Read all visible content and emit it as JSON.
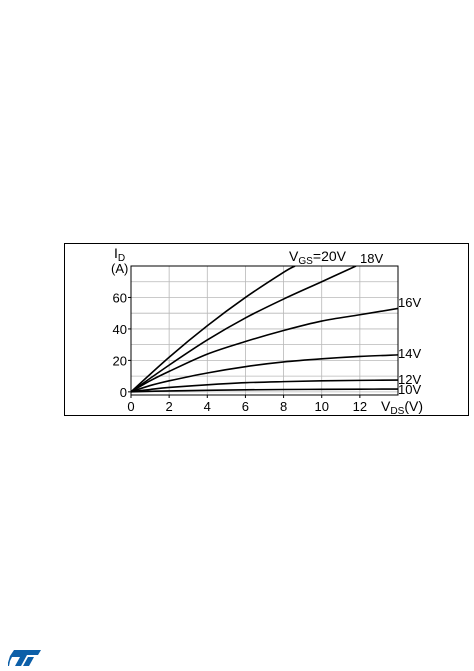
{
  "chart_data": {
    "type": "line",
    "title": "",
    "xlabel": "V",
    "xlabel_sub": "DS",
    "xlabel_unit": "(V)",
    "ylabel": "I",
    "ylabel_sub": "D",
    "ylabel_unit": "(A)",
    "xlim": [
      0,
      14
    ],
    "ylim": [
      -2,
      80
    ],
    "x_ticks": [
      0,
      2,
      4,
      6,
      8,
      10,
      12
    ],
    "y_ticks": [
      0,
      20,
      40,
      60
    ],
    "grid": true,
    "legend": "none",
    "series": [
      {
        "name": "VGS=20V",
        "label_prefix": "V",
        "label_sub": "GS",
        "label_suffix": "=20V",
        "x": [
          0,
          2,
          4,
          6,
          8,
          8.6
        ],
        "y": [
          0,
          22,
          42,
          60,
          76,
          80
        ]
      },
      {
        "name": "18V",
        "label": "18V",
        "x": [
          0,
          2,
          4,
          6,
          8,
          10,
          11.8
        ],
        "y": [
          0,
          17,
          33,
          47,
          59,
          70,
          80
        ]
      },
      {
        "name": "16V",
        "label": "16V",
        "x": [
          0,
          1,
          2,
          4,
          6,
          8,
          10,
          12,
          14
        ],
        "y": [
          0,
          7,
          13,
          24,
          32,
          39,
          45,
          49,
          53
        ]
      },
      {
        "name": "14V",
        "label": "14V",
        "x": [
          0,
          1,
          2,
          4,
          6,
          8,
          10,
          12,
          14
        ],
        "y": [
          0,
          4,
          7,
          12,
          16,
          19,
          21,
          22.5,
          23.5
        ]
      },
      {
        "name": "12V",
        "label": "12V",
        "x": [
          0,
          1,
          2,
          4,
          6,
          8,
          10,
          12,
          14
        ],
        "y": [
          0,
          1.5,
          2.8,
          4.5,
          5.8,
          6.5,
          7,
          7.3,
          7.5
        ]
      },
      {
        "name": "10V",
        "label": "10V",
        "x": [
          0,
          2,
          4,
          6,
          8,
          10,
          12,
          14
        ],
        "y": [
          0,
          0.6,
          1,
          1.3,
          1.5,
          1.6,
          1.7,
          1.8
        ]
      }
    ]
  },
  "logo": {
    "text": "ST"
  }
}
